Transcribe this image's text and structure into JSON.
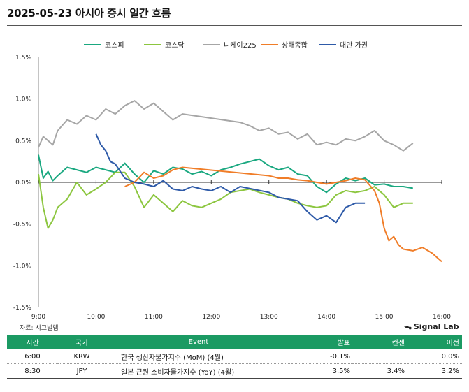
{
  "title": "2025-05-23 아시아 증시 일간 흐름",
  "source": "자료: 시그널랩",
  "brand": "Signal Lab",
  "brand_icon": "pulse-icon",
  "table": {
    "header_color": "#1b9a63",
    "columns": [
      "시간",
      "국가",
      "Event",
      "발표",
      "컨센",
      "이전"
    ],
    "rows": [
      [
        "6:00",
        "KRW",
        "한국 생산자물가지수 (MoM) (4월)",
        "-0.1%",
        "",
        "0.0%"
      ],
      [
        "8:30",
        "JPY",
        "일본 근원 소비자물가지수 (YoY) (4월)",
        "3.5%",
        "3.4%",
        "3.2%"
      ]
    ]
  },
  "chart_data": {
    "type": "line",
    "xlabel": "",
    "ylabel": "",
    "x_ticks": [
      "9:00",
      "10:00",
      "11:00",
      "12:00",
      "13:00",
      "14:00",
      "15:00",
      "16:00"
    ],
    "y_ticks": [
      "1.5%",
      "1.0%",
      "0.5%",
      "0.0%",
      "-0.5%",
      "-1.0%",
      "-1.5%"
    ],
    "ylim": [
      -1.5,
      1.5
    ],
    "xlim": [
      "09:00",
      "16:00"
    ],
    "grid": false,
    "legend_position": "top",
    "series": [
      {
        "name": "코스피",
        "color": "#1aa880",
        "x": [
          "09:00",
          "09:05",
          "09:10",
          "09:15",
          "09:20",
          "09:30",
          "09:40",
          "09:50",
          "10:00",
          "10:10",
          "10:20",
          "10:30",
          "10:40",
          "10:50",
          "11:00",
          "11:10",
          "11:20",
          "11:30",
          "11:40",
          "11:50",
          "12:00",
          "12:10",
          "12:20",
          "12:30",
          "12:40",
          "12:50",
          "13:00",
          "13:10",
          "13:20",
          "13:30",
          "13:40",
          "13:50",
          "14:00",
          "14:10",
          "14:20",
          "14:30",
          "14:40",
          "14:50",
          "15:00",
          "15:10",
          "15:20",
          "15:30"
        ],
        "y": [
          0.33,
          0.05,
          0.13,
          0.02,
          0.08,
          0.18,
          0.15,
          0.12,
          0.18,
          0.15,
          0.12,
          0.23,
          0.1,
          0.0,
          0.14,
          0.1,
          0.18,
          0.16,
          0.1,
          0.13,
          0.08,
          0.15,
          0.18,
          0.22,
          0.25,
          0.28,
          0.2,
          0.15,
          0.18,
          0.1,
          0.08,
          -0.05,
          -0.12,
          -0.02,
          0.05,
          0.02,
          0.05,
          -0.03,
          -0.02,
          -0.05,
          -0.05,
          -0.07
        ]
      },
      {
        "name": "코스닥",
        "color": "#8cc63f",
        "x": [
          "09:00",
          "09:05",
          "09:10",
          "09:15",
          "09:20",
          "09:30",
          "09:40",
          "09:50",
          "10:00",
          "10:10",
          "10:20",
          "10:30",
          "10:40",
          "10:50",
          "11:00",
          "11:10",
          "11:20",
          "11:30",
          "11:40",
          "11:50",
          "12:00",
          "12:10",
          "12:20",
          "12:30",
          "12:40",
          "12:50",
          "13:00",
          "13:10",
          "13:20",
          "13:30",
          "13:40",
          "13:50",
          "14:00",
          "14:10",
          "14:20",
          "14:30",
          "14:40",
          "14:50",
          "15:00",
          "15:10",
          "15:20",
          "15:30"
        ],
        "y": [
          0.1,
          -0.3,
          -0.55,
          -0.45,
          -0.3,
          -0.2,
          0.0,
          -0.15,
          -0.08,
          0.0,
          0.12,
          0.12,
          -0.05,
          -0.3,
          -0.15,
          -0.25,
          -0.35,
          -0.22,
          -0.28,
          -0.3,
          -0.25,
          -0.2,
          -0.12,
          -0.1,
          -0.08,
          -0.12,
          -0.15,
          -0.18,
          -0.2,
          -0.25,
          -0.28,
          -0.3,
          -0.28,
          -0.15,
          -0.1,
          -0.12,
          -0.1,
          -0.05,
          -0.15,
          -0.3,
          -0.25,
          -0.25
        ]
      },
      {
        "name": "니케이225",
        "color": "#a6a6a6",
        "x": [
          "09:00",
          "09:05",
          "09:10",
          "09:15",
          "09:20",
          "09:30",
          "09:40",
          "09:50",
          "10:00",
          "10:10",
          "10:20",
          "10:30",
          "10:40",
          "10:50",
          "11:00",
          "11:10",
          "11:20",
          "11:30",
          "12:30",
          "12:40",
          "12:50",
          "13:00",
          "13:10",
          "13:20",
          "13:30",
          "13:40",
          "13:50",
          "14:00",
          "14:10",
          "14:20",
          "14:30",
          "14:40",
          "14:50",
          "15:00",
          "15:10",
          "15:20",
          "15:30"
        ],
        "y": [
          0.42,
          0.55,
          0.5,
          0.45,
          0.62,
          0.75,
          0.7,
          0.8,
          0.75,
          0.88,
          0.82,
          0.92,
          0.98,
          0.88,
          0.95,
          0.85,
          0.75,
          0.82,
          0.72,
          0.68,
          0.62,
          0.65,
          0.58,
          0.6,
          0.52,
          0.58,
          0.45,
          0.48,
          0.45,
          0.52,
          0.5,
          0.55,
          0.62,
          0.5,
          0.45,
          0.38,
          0.47
        ]
      },
      {
        "name": "상해종합",
        "color": "#f07d28",
        "x": [
          "10:30",
          "10:40",
          "10:50",
          "11:00",
          "11:10",
          "11:20",
          "11:30",
          "13:00",
          "13:10",
          "13:20",
          "13:30",
          "13:40",
          "13:50",
          "14:00",
          "14:10",
          "14:20",
          "14:30",
          "14:40",
          "14:50",
          "14:55",
          "15:00",
          "15:05",
          "15:10",
          "15:15",
          "15:20",
          "15:30",
          "15:40",
          "15:50",
          "16:00"
        ],
        "y": [
          -0.05,
          0.0,
          0.12,
          0.05,
          0.08,
          0.15,
          0.18,
          0.08,
          0.05,
          0.05,
          0.03,
          0.02,
          0.0,
          -0.02,
          0.0,
          0.02,
          0.05,
          0.03,
          -0.1,
          -0.25,
          -0.55,
          -0.7,
          -0.65,
          -0.75,
          -0.8,
          -0.82,
          -0.78,
          -0.85,
          -0.95
        ]
      },
      {
        "name": "대만 가권",
        "color": "#2e5aa8",
        "x": [
          "10:00",
          "10:05",
          "10:10",
          "10:15",
          "10:20",
          "10:30",
          "10:40",
          "10:50",
          "11:00",
          "11:10",
          "11:20",
          "11:30",
          "11:40",
          "11:50",
          "12:00",
          "12:10",
          "12:20",
          "12:30",
          "13:00",
          "13:10",
          "13:20",
          "13:30",
          "13:40",
          "13:50",
          "14:00",
          "14:10",
          "14:20",
          "14:30",
          "14:40"
        ],
        "y": [
          0.58,
          0.45,
          0.38,
          0.25,
          0.22,
          0.05,
          0.0,
          -0.02,
          -0.05,
          0.02,
          -0.08,
          -0.1,
          -0.05,
          -0.08,
          -0.1,
          -0.05,
          -0.12,
          -0.05,
          -0.12,
          -0.18,
          -0.2,
          -0.22,
          -0.35,
          -0.45,
          -0.4,
          -0.48,
          -0.3,
          -0.25,
          -0.25
        ]
      }
    ]
  }
}
